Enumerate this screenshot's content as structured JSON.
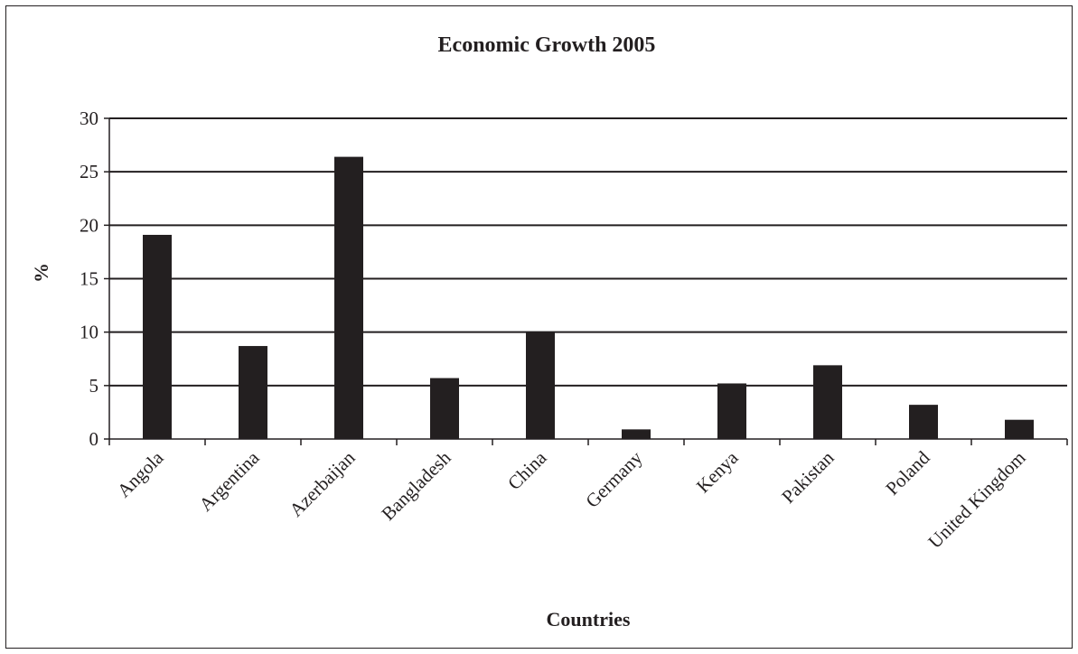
{
  "chart_data": {
    "type": "bar",
    "title": "Economic Growth 2005",
    "xlabel": "Countries",
    "ylabel": "%",
    "ylim": [
      0,
      30
    ],
    "yticks": [
      0,
      5,
      10,
      15,
      20,
      25,
      30
    ],
    "grid": true,
    "categories": [
      "Angola",
      "Argentina",
      "Azerbaijan",
      "Bangladesh",
      "China",
      "Germany",
      "Kenya",
      "Pakistan",
      "Poland",
      "United Kingdom"
    ],
    "values": [
      19.1,
      8.7,
      26.4,
      5.7,
      10.0,
      0.9,
      5.2,
      6.9,
      3.2,
      1.8
    ],
    "colors": {
      "bar": "#231f20",
      "axis": "#231f20",
      "grid": "#231f20"
    }
  }
}
